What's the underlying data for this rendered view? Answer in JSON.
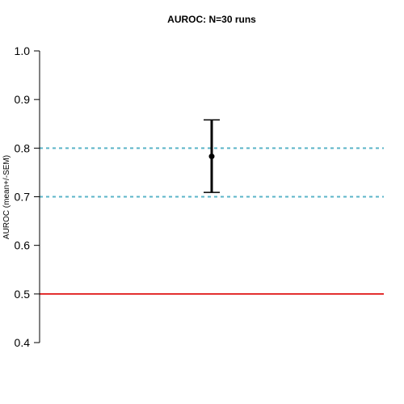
{
  "chart_data": {
    "type": "scatter",
    "title": "AUROC: N=30 runs",
    "xlabel": "",
    "ylabel": "AUROC (mean+/-SEM)",
    "ylim": [
      0.4,
      1.0
    ],
    "yticks": [
      0.4,
      0.5,
      0.6,
      0.7,
      0.8,
      0.9,
      1.0
    ],
    "ytick_labels": [
      "0.4",
      "0.5",
      "0.6",
      "0.7",
      "0.8",
      "0.9",
      "1.0"
    ],
    "grid": false,
    "points": [
      {
        "x": 1,
        "y": 0.783,
        "ymin": 0.709,
        "ymax": 0.858
      }
    ],
    "xlim": [
      0.5,
      1.5
    ],
    "reference_lines": [
      {
        "y": 0.5,
        "style": "solid",
        "color": "#dd0000"
      },
      {
        "y": 0.7,
        "style": "dashed",
        "color": "#5bb4c8"
      },
      {
        "y": 0.8,
        "style": "dashed",
        "color": "#5bb4c8"
      }
    ]
  }
}
